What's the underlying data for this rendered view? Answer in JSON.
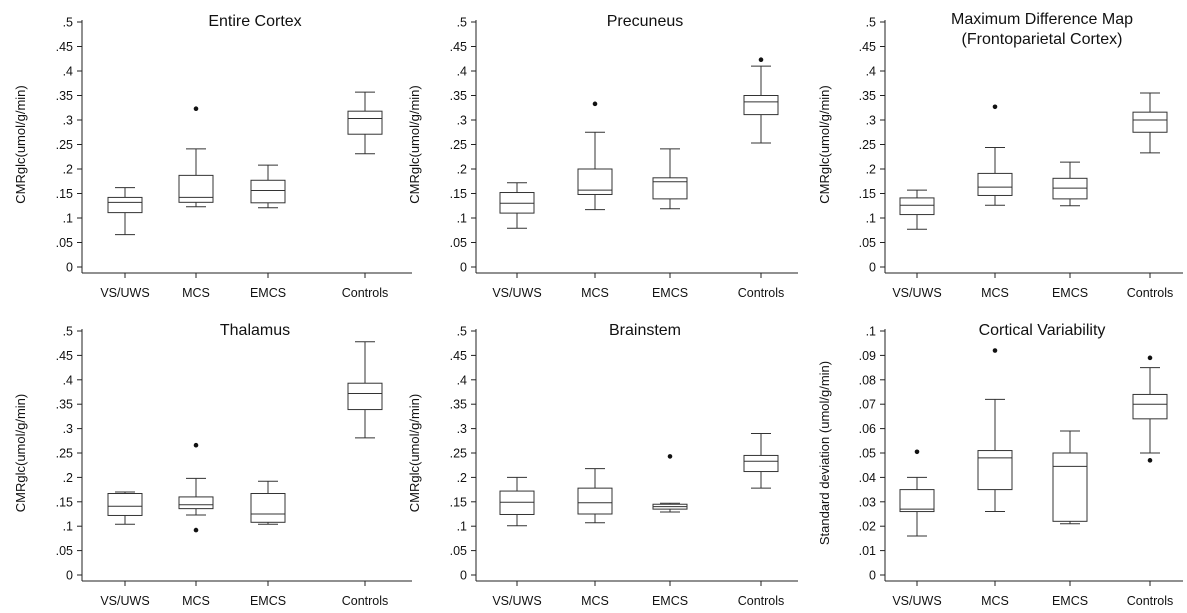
{
  "chart_data": [
    {
      "type": "box",
      "title_lines": [
        "Entire Cortex"
      ],
      "ylabel": "CMRglc(umol/g/min)",
      "ylim": [
        0,
        0.5
      ],
      "yticks": [
        0,
        0.05,
        0.1,
        0.15,
        0.2,
        0.25,
        0.3,
        0.35,
        0.4,
        0.45,
        0.5
      ],
      "ytick_labels": [
        "0",
        ".05",
        ".1",
        ".15",
        ".2",
        ".25",
        ".3",
        ".35",
        ".4",
        ".45",
        ".5"
      ],
      "categories": [
        "VS/UWS",
        "MCS",
        "EMCS",
        "Controls"
      ],
      "boxes": [
        {
          "min": 0.066,
          "q1": 0.111,
          "median": 0.132,
          "q3": 0.142,
          "max": 0.162,
          "outliers": []
        },
        {
          "min": 0.123,
          "q1": 0.132,
          "median": 0.142,
          "q3": 0.187,
          "max": 0.241,
          "outliers": [
            0.323
          ]
        },
        {
          "min": 0.121,
          "q1": 0.131,
          "median": 0.156,
          "q3": 0.177,
          "max": 0.208,
          "outliers": []
        },
        {
          "min": 0.231,
          "q1": 0.271,
          "median": 0.303,
          "q3": 0.318,
          "max": 0.357,
          "outliers": []
        }
      ]
    },
    {
      "type": "box",
      "title_lines": [
        "Precuneus"
      ],
      "ylabel": "CMRglc(umol/g/min)",
      "ylim": [
        0,
        0.5
      ],
      "yticks": [
        0,
        0.05,
        0.1,
        0.15,
        0.2,
        0.25,
        0.3,
        0.35,
        0.4,
        0.45,
        0.5
      ],
      "ytick_labels": [
        "0",
        ".05",
        ".1",
        ".15",
        ".2",
        ".25",
        ".3",
        ".35",
        ".4",
        ".45",
        ".5"
      ],
      "categories": [
        "VS/UWS",
        "MCS",
        "EMCS",
        "Controls"
      ],
      "boxes": [
        {
          "min": 0.079,
          "q1": 0.11,
          "median": 0.13,
          "q3": 0.152,
          "max": 0.172,
          "outliers": []
        },
        {
          "min": 0.117,
          "q1": 0.148,
          "median": 0.157,
          "q3": 0.2,
          "max": 0.275,
          "outliers": [
            0.333
          ]
        },
        {
          "min": 0.119,
          "q1": 0.139,
          "median": 0.174,
          "q3": 0.182,
          "max": 0.241,
          "outliers": []
        },
        {
          "min": 0.253,
          "q1": 0.311,
          "median": 0.337,
          "q3": 0.35,
          "max": 0.41,
          "outliers": [
            0.423
          ]
        }
      ]
    },
    {
      "type": "box",
      "title_lines": [
        "Maximum Difference Map",
        "(Frontoparietal Cortex)"
      ],
      "ylabel": "CMRglc(umol/g/min)",
      "ylim": [
        0,
        0.5
      ],
      "yticks": [
        0,
        0.05,
        0.1,
        0.15,
        0.2,
        0.25,
        0.3,
        0.35,
        0.4,
        0.45,
        0.5
      ],
      "ytick_labels": [
        "0",
        ".05",
        ".1",
        ".15",
        ".2",
        ".25",
        ".3",
        ".35",
        ".4",
        ".45",
        ".5"
      ],
      "categories": [
        "VS/UWS",
        "MCS",
        "EMCS",
        "Controls"
      ],
      "boxes": [
        {
          "min": 0.077,
          "q1": 0.107,
          "median": 0.126,
          "q3": 0.141,
          "max": 0.157,
          "outliers": []
        },
        {
          "min": 0.126,
          "q1": 0.146,
          "median": 0.163,
          "q3": 0.191,
          "max": 0.244,
          "outliers": [
            0.327
          ]
        },
        {
          "min": 0.125,
          "q1": 0.139,
          "median": 0.161,
          "q3": 0.181,
          "max": 0.214,
          "outliers": []
        },
        {
          "min": 0.233,
          "q1": 0.275,
          "median": 0.3,
          "q3": 0.316,
          "max": 0.355,
          "outliers": []
        }
      ]
    },
    {
      "type": "box",
      "title_lines": [
        "Thalamus"
      ],
      "ylabel": "CMRglc(umol/g/min)",
      "ylim": [
        0,
        0.5
      ],
      "yticks": [
        0,
        0.05,
        0.1,
        0.15,
        0.2,
        0.25,
        0.3,
        0.35,
        0.4,
        0.45,
        0.5
      ],
      "ytick_labels": [
        "0",
        ".05",
        ".1",
        ".15",
        ".2",
        ".25",
        ".3",
        ".35",
        ".4",
        ".45",
        ".5"
      ],
      "categories": [
        "VS/UWS",
        "MCS",
        "EMCS",
        "Controls"
      ],
      "boxes": [
        {
          "min": 0.104,
          "q1": 0.122,
          "median": 0.141,
          "q3": 0.167,
          "max": 0.17,
          "outliers": []
        },
        {
          "min": 0.123,
          "q1": 0.136,
          "median": 0.144,
          "q3": 0.16,
          "max": 0.198,
          "outliers": [
            0.266,
            0.092
          ]
        },
        {
          "min": 0.104,
          "q1": 0.108,
          "median": 0.125,
          "q3": 0.167,
          "max": 0.192,
          "outliers": []
        },
        {
          "min": 0.281,
          "q1": 0.339,
          "median": 0.372,
          "q3": 0.393,
          "max": 0.478,
          "outliers": []
        }
      ]
    },
    {
      "type": "box",
      "title_lines": [
        "Brainstem"
      ],
      "ylabel": "CMRglc(umol/g/min)",
      "ylim": [
        0,
        0.5
      ],
      "yticks": [
        0,
        0.05,
        0.1,
        0.15,
        0.2,
        0.25,
        0.3,
        0.35,
        0.4,
        0.45,
        0.5
      ],
      "ytick_labels": [
        "0",
        ".05",
        ".1",
        ".15",
        ".2",
        ".25",
        ".3",
        ".35",
        ".4",
        ".45",
        ".5"
      ],
      "categories": [
        "VS/UWS",
        "MCS",
        "EMCS",
        "Controls"
      ],
      "boxes": [
        {
          "min": 0.101,
          "q1": 0.124,
          "median": 0.149,
          "q3": 0.172,
          "max": 0.2,
          "outliers": []
        },
        {
          "min": 0.107,
          "q1": 0.125,
          "median": 0.148,
          "q3": 0.178,
          "max": 0.218,
          "outliers": []
        },
        {
          "min": 0.129,
          "q1": 0.135,
          "median": 0.14,
          "q3": 0.145,
          "max": 0.147,
          "outliers": [
            0.243
          ]
        },
        {
          "min": 0.178,
          "q1": 0.212,
          "median": 0.233,
          "q3": 0.245,
          "max": 0.29,
          "outliers": []
        }
      ]
    },
    {
      "type": "box",
      "title_lines": [
        "Cortical Variability"
      ],
      "ylabel": "Standard deviation (umol/g/min)",
      "ylim": [
        0,
        0.1
      ],
      "yticks": [
        0,
        0.01,
        0.02,
        0.03,
        0.04,
        0.05,
        0.06,
        0.07,
        0.08,
        0.09,
        0.1
      ],
      "ytick_labels": [
        "0",
        ".01",
        ".02",
        ".03",
        ".04",
        ".05",
        ".06",
        ".07",
        ".08",
        ".09",
        ".1"
      ],
      "categories": [
        "VS/UWS",
        "MCS",
        "EMCS",
        "Controls"
      ],
      "boxes": [
        {
          "min": 0.016,
          "q1": 0.026,
          "median": 0.027,
          "q3": 0.035,
          "max": 0.04,
          "outliers": [
            0.0505
          ]
        },
        {
          "min": 0.026,
          "q1": 0.035,
          "median": 0.048,
          "q3": 0.051,
          "max": 0.072,
          "outliers": [
            0.092
          ]
        },
        {
          "min": 0.021,
          "q1": 0.022,
          "median": 0.0445,
          "q3": 0.05,
          "max": 0.059,
          "outliers": []
        },
        {
          "min": 0.05,
          "q1": 0.064,
          "median": 0.07,
          "q3": 0.074,
          "max": 0.085,
          "outliers": [
            0.089,
            0.047
          ]
        }
      ]
    }
  ]
}
